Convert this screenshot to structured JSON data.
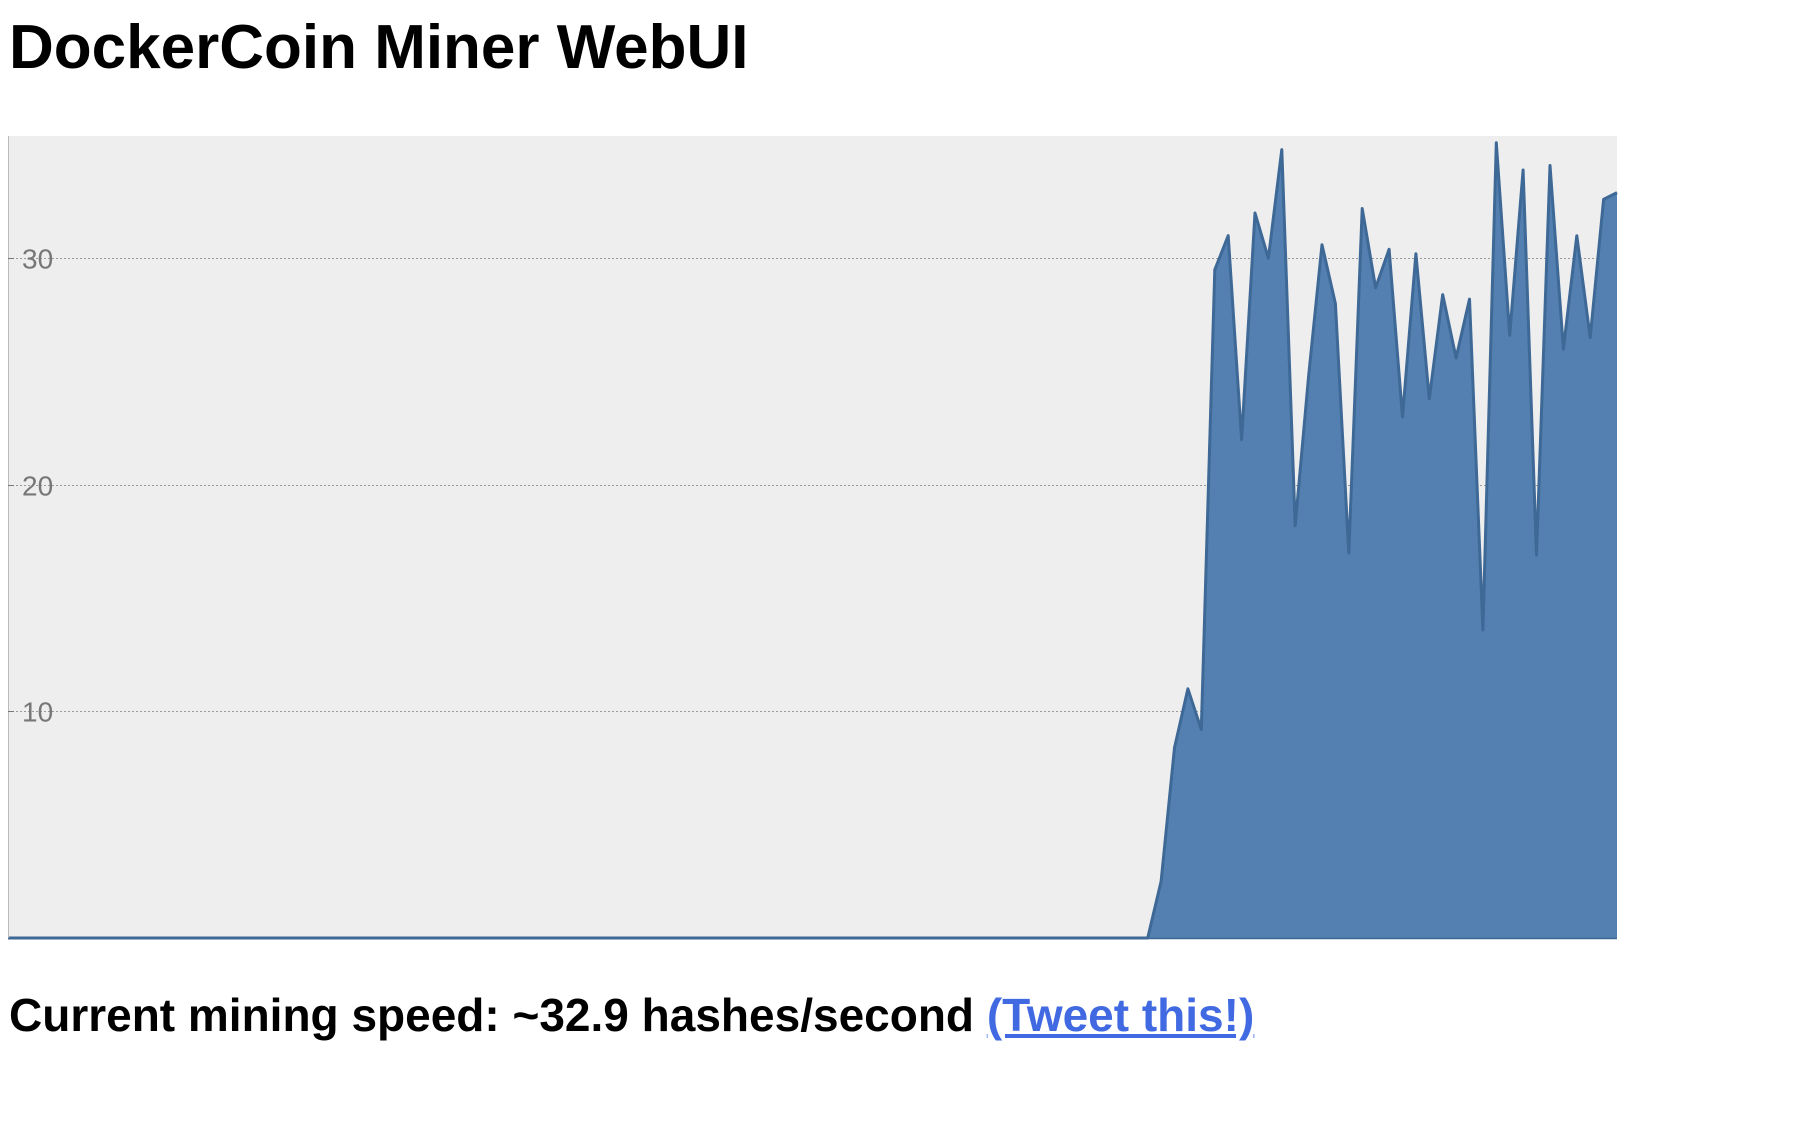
{
  "header": {
    "title": "DockerCoin Miner WebUI"
  },
  "status": {
    "prefix": "Current mining speed: ",
    "speed": "~32.9",
    "unit": " hashes/second ",
    "tweet_label": "(Tweet this!)"
  },
  "colors": {
    "area_fill": "#5380b0",
    "area_stroke": "#3e6896",
    "plot_background": "#eeeeee",
    "link": "#4169e1"
  },
  "chart_data": {
    "type": "area",
    "title": "",
    "xlabel": "",
    "ylabel": "",
    "grid": true,
    "legend": "none",
    "ylim": [
      0,
      35.4
    ],
    "ytick_values": [
      10,
      20,
      30
    ],
    "yticks": [
      "10",
      "20",
      "30"
    ],
    "xlim": [
      0,
      120
    ],
    "x": [
      0,
      85,
      86,
      87,
      88,
      89,
      90,
      91,
      92,
      93,
      94,
      95,
      96,
      97,
      98,
      99,
      100,
      101,
      102,
      103,
      104,
      105,
      106,
      107,
      108,
      109,
      110,
      111,
      112,
      113,
      114,
      115,
      116,
      117,
      118,
      119,
      120
    ],
    "values": [
      0,
      0,
      2.5,
      8.4,
      11,
      9.2,
      29.5,
      31,
      22,
      32,
      30,
      34.8,
      18.2,
      24.8,
      30.6,
      28,
      17,
      32.2,
      28.7,
      30.4,
      23,
      30.2,
      23.8,
      28.4,
      25.6,
      28.2,
      13.6,
      35.1,
      26.6,
      33.9,
      16.9,
      34.1,
      26,
      31,
      26.5,
      32.6,
      32.9
    ]
  }
}
